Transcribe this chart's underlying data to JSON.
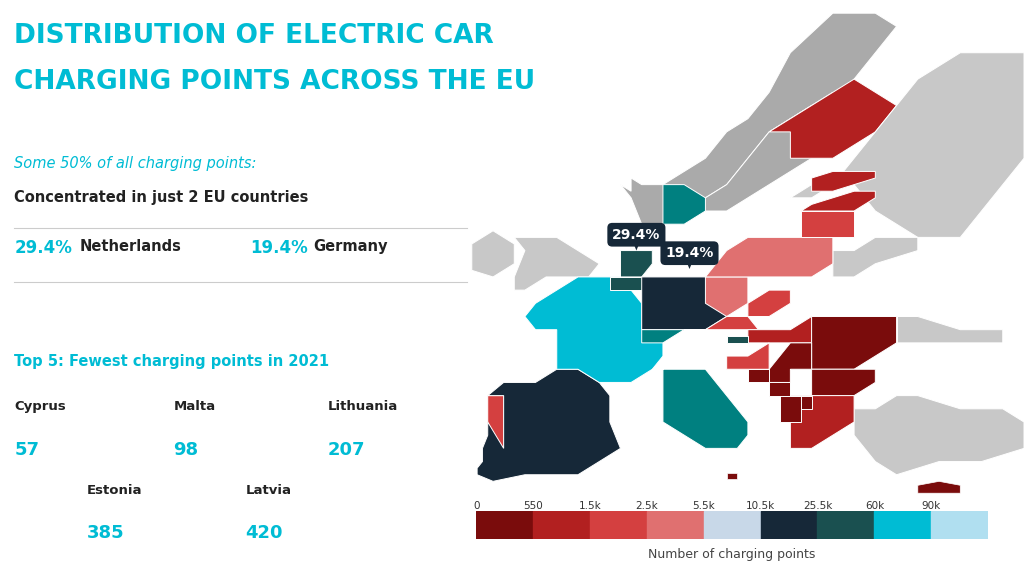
{
  "title_line1": "DISTRIBUTION OF ELECTRIC CAR",
  "title_line2": "CHARGING POINTS ACROSS THE EU",
  "title_color": "#00bcd4",
  "bg_color": "#ffffff",
  "subtitle1": "Some 50% of all charging points:",
  "subtitle1_color": "#00bcd4",
  "subtitle2": "Concentrated in just 2 EU countries",
  "subtitle2_color": "#222222",
  "nl_pct": "29.4%",
  "nl_label": "Netherlands",
  "de_pct": "19.4%",
  "de_label": "Germany",
  "pct_color": "#00bcd4",
  "label_color": "#222222",
  "divider_color": "#cccccc",
  "top5_title": "Top 5: Fewest charging points in 2021",
  "top5_color": "#00bcd4",
  "countries_row1": [
    "Cyprus",
    "Malta",
    "Lithuania"
  ],
  "values_row1": [
    "57",
    "98",
    "207"
  ],
  "countries_row2": [
    "Estonia",
    "Latvia"
  ],
  "values_row2": [
    "385",
    "420"
  ],
  "country_color": "#222222",
  "value_color": "#00bcd4",
  "legend_labels": [
    "0",
    "550",
    "1.5k",
    "2.5k",
    "5.5k",
    "10.5k",
    "25.5k",
    "60k",
    "90k"
  ],
  "legend_title": "Number of charging points",
  "colorbar_colors": [
    "#7a0c0c",
    "#b22020",
    "#d44040",
    "#e07070",
    "#c8d8e8",
    "#162838",
    "#1a5050",
    "#00bcd4",
    "#b0dff0"
  ],
  "balloon1_text": "29.4%",
  "balloon2_text": "19.4%",
  "balloon_bg": "#162838",
  "balloon_text_color": "#ffffff",
  "C_DARK_RED": "#7a0c0c",
  "C_MED_RED": "#b22020",
  "C_RED": "#d44040",
  "C_SALMON": "#e07070",
  "C_TEAL_DARK": "#1a5050",
  "C_TEAL_MED": "#008080",
  "C_CYAN": "#00bcd4",
  "C_DARK_BLUE": "#162838",
  "C_LIGHT_BLUE": "#b0dff0",
  "C_GRAY": "#aaaaaa",
  "C_LIGHT_GRAY": "#c8c8c8",
  "sea_color": "#e8f4f8"
}
